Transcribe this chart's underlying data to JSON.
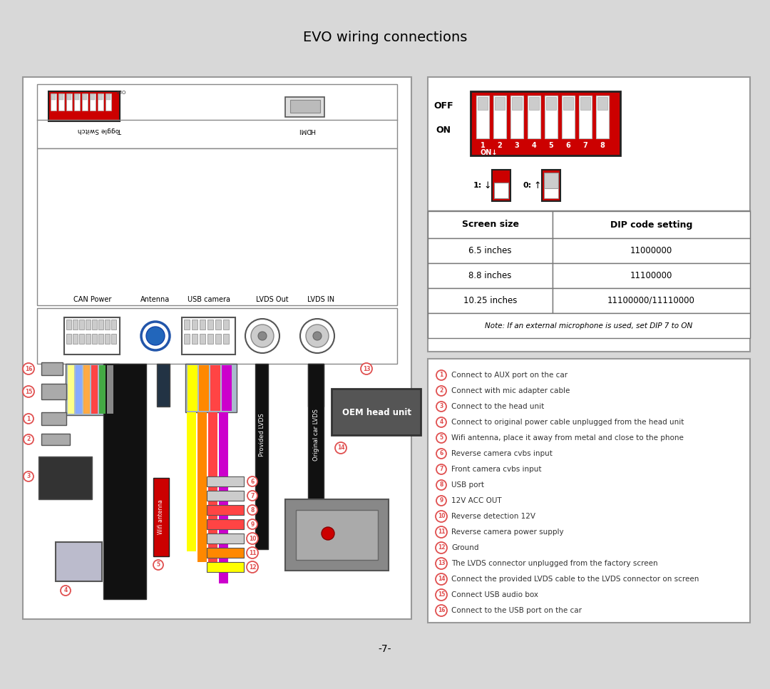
{
  "title": "EVO wiring connections",
  "page_number": "-7-",
  "bg_color": "#d8d8d8",
  "panel_bg": "#ffffff",
  "table_headers": [
    "Screen size",
    "DIP code setting"
  ],
  "table_rows": [
    [
      "6.5 inches",
      "11000000"
    ],
    [
      "8.8 inches",
      "11100000"
    ],
    [
      "10.25 inches",
      "11100000/11110000"
    ]
  ],
  "table_note": "Note: If an external microphone is used, set DIP 7 to ON",
  "legend_items": [
    [
      "1",
      "Connect to AUX port on the car"
    ],
    [
      "2",
      "Connect with mic adapter cable"
    ],
    [
      "3",
      "Connect to the head unit"
    ],
    [
      "4",
      "Connect to original power cable unplugged from the head unit"
    ],
    [
      "5",
      "Wifi antenna, place it away from metal and close to the phone"
    ],
    [
      "6",
      "Reverse camera cvbs input"
    ],
    [
      "7",
      "Front camera cvbs input"
    ],
    [
      "8",
      "USB port"
    ],
    [
      "9",
      "12V ACC OUT"
    ],
    [
      "10",
      "Reverse detection 12V"
    ],
    [
      "11",
      "Reverse camera power supply"
    ],
    [
      "12",
      "Ground"
    ],
    [
      "13",
      "The LVDS connector unplugged from the factory screen"
    ],
    [
      "14",
      "Connect the provided LVDS cable to the LVDS connector on screen"
    ],
    [
      "15",
      "Connect USB audio box"
    ],
    [
      "16",
      "Connect to the USB port on the car"
    ]
  ],
  "connector_labels": [
    "CAN Power",
    "Antenna",
    "USB camera",
    "LVDS Out",
    "LVDS IN"
  ],
  "red_color": "#cc0000",
  "circle_color": "#e05050",
  "dip_numbers": [
    "1",
    "2",
    "3",
    "4",
    "5",
    "6",
    "7",
    "8"
  ],
  "wire_colors_main": [
    "#ffff00",
    "#ff8800",
    "#ff4444",
    "#cc00cc",
    "#ffff00"
  ],
  "wire_colors_small": [
    "#cccccc",
    "#cccccc",
    "#ff4444",
    "#ff4444",
    "#cccccc",
    "#ff8800",
    "#cc00cc",
    "#ffff00",
    "#888888"
  ]
}
